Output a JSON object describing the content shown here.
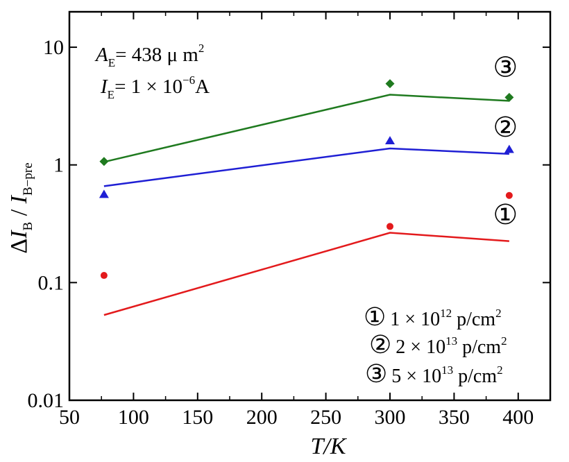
{
  "chart_data": {
    "type": "scatter",
    "x_scale": "linear",
    "y_scale": "log",
    "xlim": [
      50,
      425
    ],
    "ylim": [
      0.01,
      20
    ],
    "x_ticks": [
      50,
      100,
      150,
      200,
      250,
      300,
      350,
      400
    ],
    "x_tick_labels": [
      "50",
      "100",
      "150",
      "200",
      "250",
      "300",
      "350",
      "400"
    ],
    "y_ticks": [
      0.01,
      0.1,
      1,
      10
    ],
    "y_tick_labels": [
      "0.01",
      "0.1",
      "1",
      "10"
    ],
    "xlabel": "T/K",
    "ylabel": {
      "prefix": "Δ",
      "main": "I",
      "main_sub": "B",
      "sep": " / ",
      "den": "I",
      "den_sub": "B−pre"
    },
    "grid": false,
    "annotations": {
      "ae": {
        "main": "A",
        "sub": "E",
        "rest": "= 438  μ m",
        "sup": "2"
      },
      "ie": {
        "main": "I",
        "sub": "E",
        "rest": "= 1 × 10",
        "sup": "−6",
        "tail": "A"
      }
    },
    "series": [
      {
        "id": "s1",
        "label": "①",
        "color": "#e31a1c",
        "marker": "circle",
        "points": {
          "x": [
            77,
            300,
            393
          ],
          "y": [
            0.115,
            0.3,
            0.55
          ]
        },
        "fit": {
          "x": [
            77,
            300,
            393
          ],
          "y": [
            0.053,
            0.265,
            0.225
          ]
        },
        "label_pos": {
          "x": 390,
          "y": 0.38
        }
      },
      {
        "id": "s2",
        "label": "②",
        "color": "#1f1fd4",
        "marker": "triangle",
        "points": {
          "x": [
            77,
            300,
            393
          ],
          "y": [
            0.56,
            1.6,
            1.35
          ]
        },
        "fit": {
          "x": [
            77,
            300,
            393
          ],
          "y": [
            0.66,
            1.38,
            1.24
          ]
        },
        "label_pos": {
          "x": 390,
          "y": 2.1
        }
      },
      {
        "id": "s3",
        "label": "③",
        "color": "#1f7a1f",
        "marker": "diamond",
        "points": {
          "x": [
            77,
            300,
            393
          ],
          "y": [
            1.07,
            4.9,
            3.75
          ]
        },
        "fit": {
          "x": [
            77,
            300,
            393
          ],
          "y": [
            1.06,
            3.95,
            3.5
          ]
        },
        "label_pos": {
          "x": 390,
          "y": 6.8
        }
      }
    ],
    "legend": {
      "placement": "bottom-right",
      "entries": [
        {
          "symbol": "①",
          "text": "1 × 10",
          "sup": "12",
          "unit": " p/cm",
          "unit_sup": "2"
        },
        {
          "symbol": "②",
          "text": "2 × 10",
          "sup": "13",
          "unit": " p/cm",
          "unit_sup": "2"
        },
        {
          "symbol": "③",
          "text": "5 × 10",
          "sup": "13",
          "unit": " p/cm",
          "unit_sup": "2"
        }
      ]
    }
  }
}
